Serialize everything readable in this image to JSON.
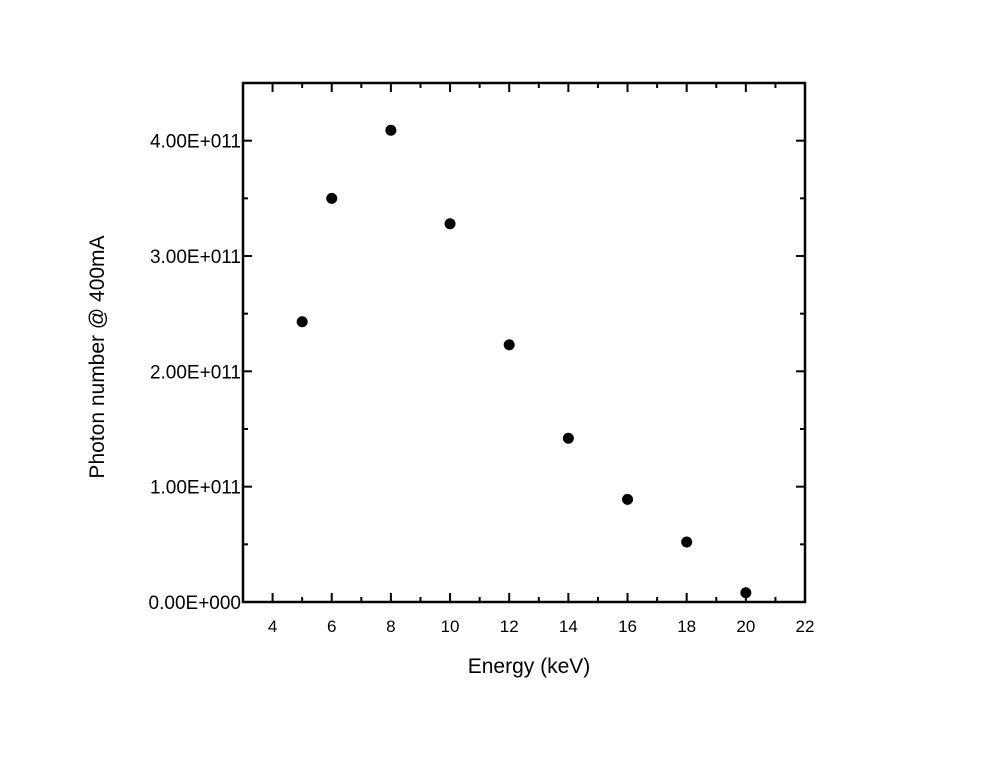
{
  "chart_data": {
    "type": "scatter",
    "title": "",
    "xlabel": "Energy (keV)",
    "ylabel": "Photon number @ 400mA",
    "xlim": [
      3,
      22
    ],
    "ylim": [
      0,
      450000000000.0
    ],
    "grid": false,
    "legend": null,
    "x_ticks": [
      "4",
      "6",
      "8",
      "10",
      "12",
      "14",
      "16",
      "18",
      "20",
      "22"
    ],
    "y_ticks": [
      "0.00E+000",
      "1.00E+011",
      "2.00E+011",
      "3.00E+011",
      "4.00E+011"
    ],
    "series": [
      {
        "name": "Photon number",
        "marker": "circle",
        "color": "#000000",
        "x": [
          5,
          6,
          8,
          10,
          12,
          14,
          16,
          18,
          20
        ],
        "y": [
          243000000000.0,
          350000000000.0,
          409000000000.0,
          328000000000.0,
          223000000000.0,
          142000000000.0,
          89000000000.0,
          52000000000.0,
          8000000000.0
        ]
      }
    ]
  },
  "axes": {
    "xlabel": "Energy (keV)",
    "ylabel": "Photon number @ 400mA",
    "x_ticks": [
      "4",
      "6",
      "8",
      "10",
      "12",
      "14",
      "16",
      "18",
      "20",
      "22"
    ],
    "y_ticks": [
      "0.00E+000",
      "1.00E+011",
      "2.00E+011",
      "3.00E+011",
      "4.00E+011"
    ]
  }
}
